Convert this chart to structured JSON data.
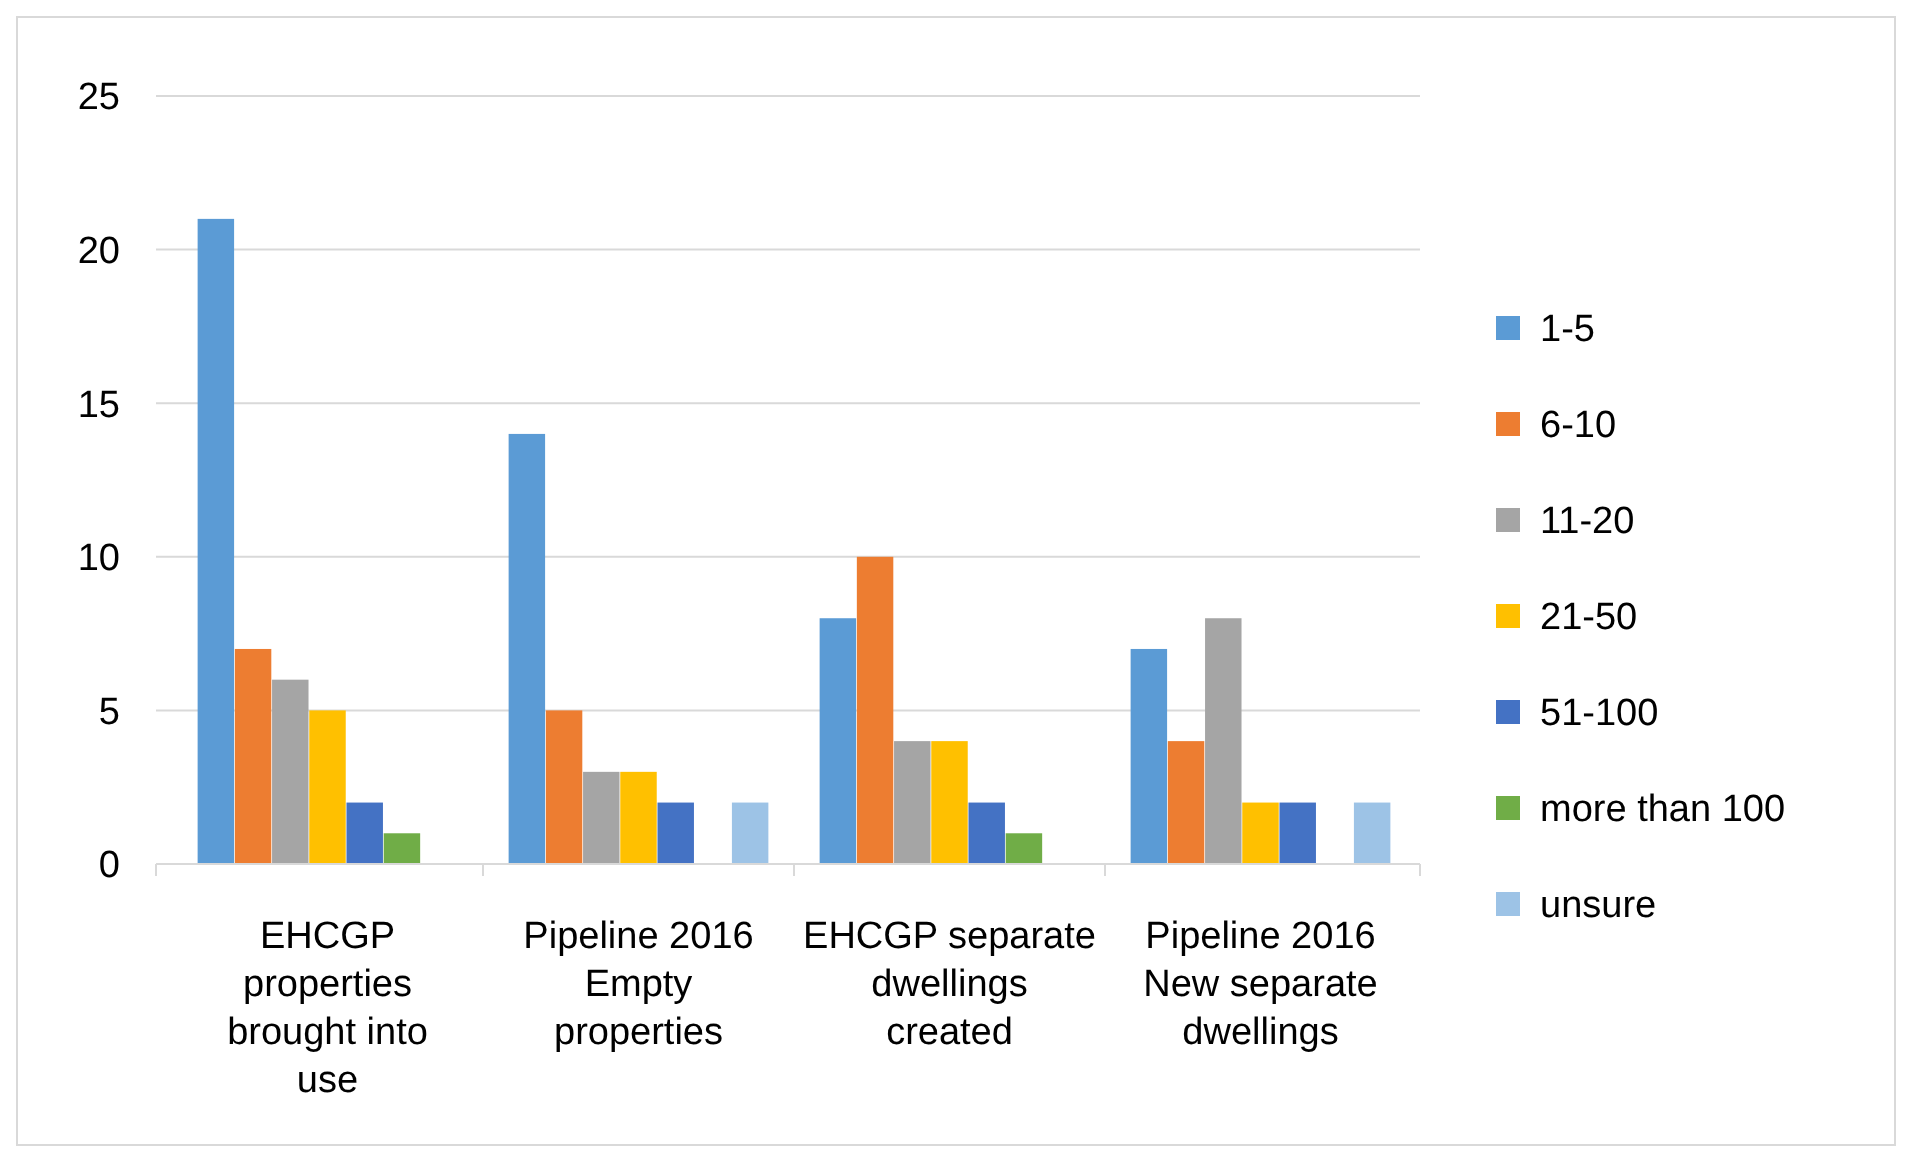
{
  "chart_data": {
    "type": "bar",
    "categories": [
      "EHCGP properties brought into use",
      "Pipeline 2016 Empty properties",
      "EHCGP separate dwellings created",
      "Pipeline 2016 New separate dwellings"
    ],
    "series": [
      {
        "name": "1-5",
        "color": "#5b9bd5",
        "values": [
          21,
          14,
          8,
          7
        ]
      },
      {
        "name": "6-10",
        "color": "#ed7d31",
        "values": [
          7,
          5,
          10,
          4
        ]
      },
      {
        "name": "11-20",
        "color": "#a5a5a5",
        "values": [
          6,
          3,
          4,
          8
        ]
      },
      {
        "name": "21-50",
        "color": "#ffc000",
        "values": [
          5,
          3,
          4,
          2
        ]
      },
      {
        "name": "51-100",
        "color": "#4472c4",
        "values": [
          2,
          2,
          2,
          2
        ]
      },
      {
        "name": "more than 100",
        "color": "#70ad47",
        "values": [
          1,
          0,
          1,
          0
        ]
      },
      {
        "name": "unsure",
        "color": "#9dc3e6",
        "values": [
          0,
          2,
          0,
          2
        ]
      }
    ],
    "ylim": [
      0,
      25
    ],
    "yticks": [
      0,
      5,
      10,
      15,
      20,
      25
    ],
    "grid": "y",
    "legend": "right"
  }
}
